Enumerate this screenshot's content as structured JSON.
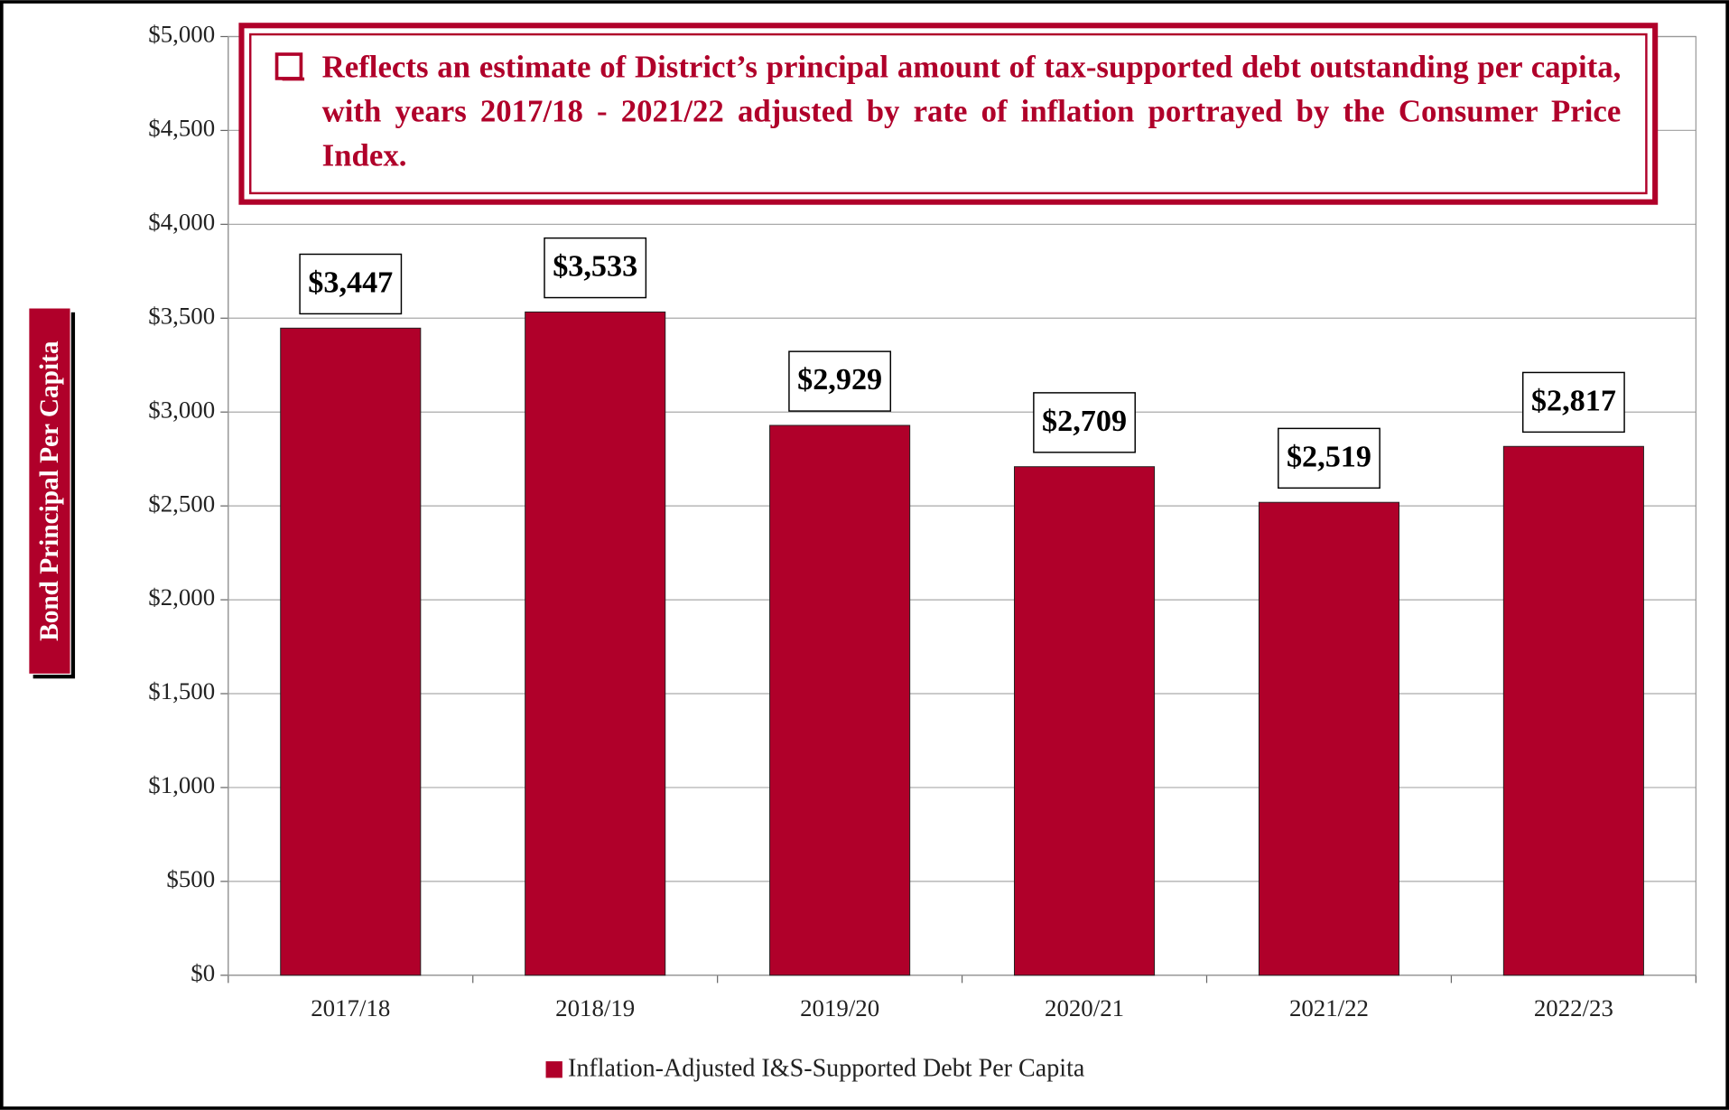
{
  "chart_data": {
    "type": "bar",
    "annotation": "Reflects an estimate of District’s principal amount of tax-supported debt outstanding per capita, with years 2017/18 - 2021/22 adjusted by rate of inflation portrayed by the Consumer Price Index.",
    "y_label": "Bond Principal Per Capita",
    "categories": [
      "2017/18",
      "2018/19",
      "2019/20",
      "2020/21",
      "2021/22",
      "2022/23"
    ],
    "series": [
      {
        "name": "Inflation-Adjusted I&S-Supported Debt Per Capita",
        "color": "#b0002a",
        "values": [
          3447,
          3533,
          2929,
          2709,
          2519,
          2817
        ],
        "value_labels": [
          "$3,447",
          "$3,533",
          "$2,929",
          "$2,709",
          "$2,519",
          "$2,817"
        ]
      }
    ],
    "ylim": [
      0,
      5000
    ],
    "yticks": [
      {
        "value": 0,
        "label": "$0"
      },
      {
        "value": 500,
        "label": "$500"
      },
      {
        "value": 1000,
        "label": "$1,000"
      },
      {
        "value": 1500,
        "label": "$1,500"
      },
      {
        "value": 2000,
        "label": "$2,000"
      },
      {
        "value": 2500,
        "label": "$2,500"
      },
      {
        "value": 3000,
        "label": "$3,000"
      },
      {
        "value": 3500,
        "label": "$3,500"
      },
      {
        "value": 4000,
        "label": "$4,000"
      },
      {
        "value": 4500,
        "label": "$4,500"
      },
      {
        "value": 5000,
        "label": "$5,000"
      }
    ],
    "grid": true
  }
}
